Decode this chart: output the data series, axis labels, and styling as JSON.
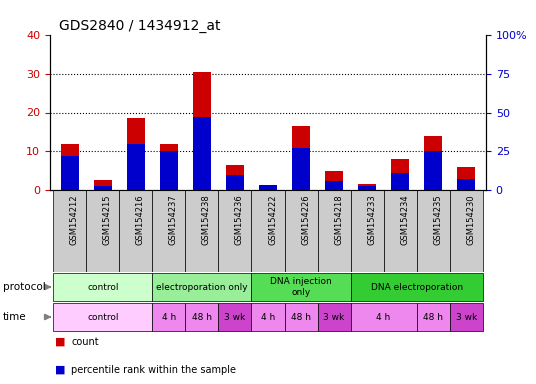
{
  "title": "GDS2840 / 1434912_at",
  "samples": [
    "GSM154212",
    "GSM154215",
    "GSM154216",
    "GSM154237",
    "GSM154238",
    "GSM154236",
    "GSM154222",
    "GSM154226",
    "GSM154218",
    "GSM154233",
    "GSM154234",
    "GSM154235",
    "GSM154230"
  ],
  "count": [
    12,
    2.5,
    18.5,
    12,
    30.5,
    6.5,
    1.2,
    16.5,
    5,
    1.5,
    8,
    14,
    6
  ],
  "percentile": [
    22,
    2.5,
    30,
    25,
    47,
    10,
    3,
    27,
    6,
    2.5,
    11,
    25,
    7
  ],
  "left_ylim": [
    0,
    40
  ],
  "right_ylim": [
    0,
    100
  ],
  "left_yticks": [
    0,
    10,
    20,
    30,
    40
  ],
  "right_yticks": [
    0,
    25,
    50,
    75,
    100
  ],
  "right_yticklabels": [
    "0",
    "25",
    "50",
    "75",
    "100%"
  ],
  "left_ycolor": "#cc0000",
  "right_ycolor": "#0000cc",
  "bar_color_count": "#cc0000",
  "bar_color_pct": "#0000cc",
  "bar_width": 0.55,
  "protocol_groups": [
    {
      "label": "control",
      "start": 0,
      "end": 3,
      "color": "#ccffcc"
    },
    {
      "label": "electroporation only",
      "start": 3,
      "end": 6,
      "color": "#99ee99"
    },
    {
      "label": "DNA injection\nonly",
      "start": 6,
      "end": 9,
      "color": "#55dd55"
    },
    {
      "label": "DNA electroporation",
      "start": 9,
      "end": 13,
      "color": "#33cc33"
    }
  ],
  "time_groups": [
    {
      "label": "control",
      "start": 0,
      "end": 3,
      "color": "#ffccff"
    },
    {
      "label": "4 h",
      "start": 3,
      "end": 4,
      "color": "#ee88ee"
    },
    {
      "label": "48 h",
      "start": 4,
      "end": 5,
      "color": "#ee88ee"
    },
    {
      "label": "3 wk",
      "start": 5,
      "end": 6,
      "color": "#cc44cc"
    },
    {
      "label": "4 h",
      "start": 6,
      "end": 7,
      "color": "#ee88ee"
    },
    {
      "label": "48 h",
      "start": 7,
      "end": 8,
      "color": "#ee88ee"
    },
    {
      "label": "3 wk",
      "start": 8,
      "end": 9,
      "color": "#cc44cc"
    },
    {
      "label": "4 h",
      "start": 9,
      "end": 11,
      "color": "#ee88ee"
    },
    {
      "label": "48 h",
      "start": 11,
      "end": 12,
      "color": "#ee88ee"
    },
    {
      "label": "3 wk",
      "start": 12,
      "end": 13,
      "color": "#cc44cc"
    }
  ],
  "grid_yticks": [
    10,
    20,
    30
  ],
  "bg_color": "#ffffff",
  "sample_bg": "#cccccc"
}
